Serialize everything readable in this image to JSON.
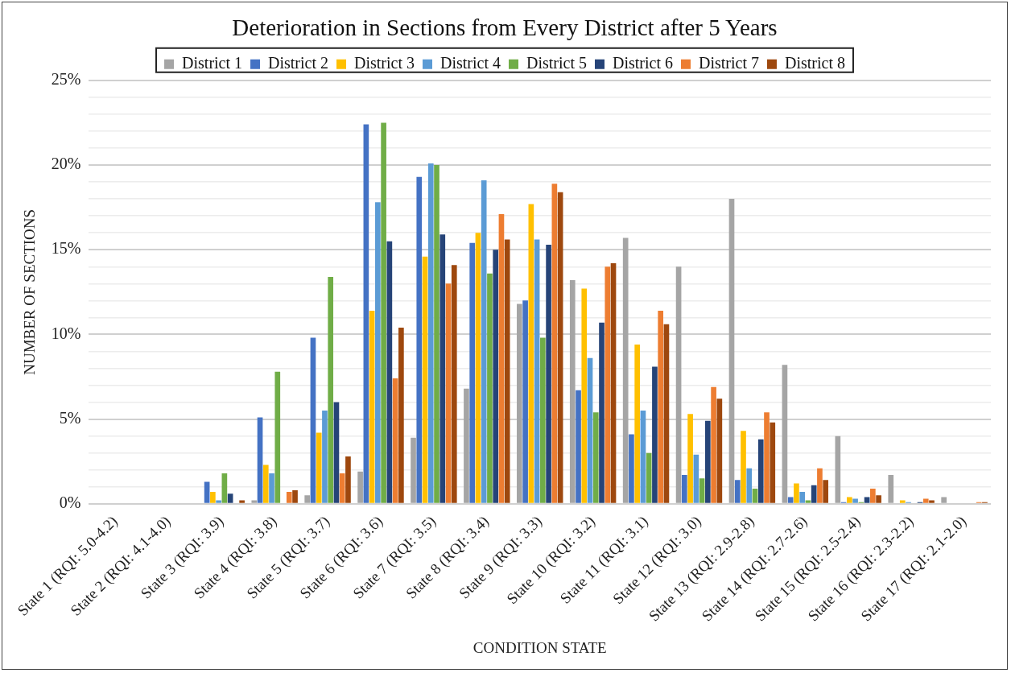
{
  "chart_data": {
    "type": "bar",
    "title": "Deterioration in Sections from Every District after 5 Years",
    "xlabel": "CONDITION STATE",
    "ylabel": "NUMBER OF SECTIONS",
    "categories": [
      "State 1 (RQI: 5.0-4.2)",
      "State 2 (RQI: 4.1-4.0)",
      "State 3 (RQI: 3.9)",
      "State 4 (RQI: 3.8)",
      "State 5 (RQI: 3.7)",
      "State 6 (RQI: 3.6)",
      "State 7 (RQI: 3.5)",
      "State 8 (RQI: 3.4)",
      "State 9 (RQI: 3.3)",
      "State 10 (RQI: 3.2)",
      "State 11 (RQI: 3.1)",
      "State 12 (RQI: 3.0)",
      "State 13 (RQI: 2.9-2.8)",
      "State 14 (RQI: 2.7-2.6)",
      "State 15 (RQI: 2.5-2.4)",
      "State 16 (RQI: 2.3-2.2)",
      "State 17 (RQI: 2.1-2.0)"
    ],
    "series": [
      {
        "name": "District 1",
        "color": "#a5a5a5",
        "values": [
          0,
          0,
          0,
          0.2,
          0.5,
          1.9,
          3.9,
          6.8,
          11.8,
          13.2,
          15.7,
          14.0,
          18.0,
          8.2,
          4.0,
          1.7,
          0.4
        ]
      },
      {
        "name": "District 2",
        "color": "#4472c4",
        "values": [
          0,
          0,
          1.3,
          5.1,
          9.8,
          22.4,
          19.3,
          15.4,
          12.0,
          6.7,
          4.1,
          1.7,
          1.4,
          0.4,
          0.1,
          0,
          0
        ]
      },
      {
        "name": "District 3",
        "color": "#ffc000",
        "values": [
          0,
          0,
          0.7,
          2.3,
          4.2,
          11.4,
          14.6,
          16.0,
          17.7,
          12.7,
          9.4,
          5.3,
          4.3,
          1.2,
          0.4,
          0.2,
          0
        ]
      },
      {
        "name": "District 4",
        "color": "#5b9bd5",
        "values": [
          0,
          0,
          0.2,
          1.8,
          5.5,
          17.8,
          20.1,
          19.1,
          15.6,
          8.6,
          5.5,
          2.9,
          2.1,
          0.7,
          0.3,
          0.1,
          0
        ]
      },
      {
        "name": "District 5",
        "color": "#70ad47",
        "values": [
          0,
          0,
          1.8,
          7.8,
          13.4,
          22.5,
          20.0,
          13.6,
          9.8,
          5.4,
          3.0,
          1.5,
          0.9,
          0.2,
          0.1,
          0,
          0
        ]
      },
      {
        "name": "District 6",
        "color": "#264478",
        "values": [
          0,
          0,
          0.6,
          0,
          6.0,
          15.5,
          15.9,
          15.0,
          15.3,
          10.7,
          8.1,
          4.9,
          3.8,
          1.1,
          0.4,
          0.1,
          0
        ]
      },
      {
        "name": "District 7",
        "color": "#ed7d31",
        "values": [
          0,
          0,
          0,
          0.7,
          1.8,
          7.4,
          13.0,
          17.1,
          18.9,
          14.0,
          11.4,
          6.9,
          5.4,
          2.1,
          0.9,
          0.3,
          0.1
        ]
      },
      {
        "name": "District 8",
        "color": "#9e480e",
        "values": [
          0,
          0,
          0.2,
          0.8,
          2.8,
          10.4,
          14.1,
          15.6,
          18.4,
          14.2,
          10.6,
          6.2,
          4.8,
          1.4,
          0.5,
          0.2,
          0.1
        ]
      }
    ],
    "ylim": [
      0,
      25
    ],
    "yticks": [
      {
        "value": 0,
        "label": "0%"
      },
      {
        "value": 1,
        "label": null
      },
      {
        "value": 2,
        "label": null
      },
      {
        "value": 3,
        "label": null
      },
      {
        "value": 4,
        "label": null
      },
      {
        "value": 5,
        "label": "5%"
      },
      {
        "value": 6,
        "label": null
      },
      {
        "value": 7,
        "label": null
      },
      {
        "value": 8,
        "label": null
      },
      {
        "value": 9,
        "label": null
      },
      {
        "value": 10,
        "label": "10%"
      },
      {
        "value": 11,
        "label": null
      },
      {
        "value": 12,
        "label": null
      },
      {
        "value": 13,
        "label": null
      },
      {
        "value": 14,
        "label": null
      },
      {
        "value": 15,
        "label": "15%"
      },
      {
        "value": 16,
        "label": null
      },
      {
        "value": 17,
        "label": null
      },
      {
        "value": 18,
        "label": null
      },
      {
        "value": 19,
        "label": null
      },
      {
        "value": 20,
        "label": "20%"
      },
      {
        "value": 21,
        "label": null
      },
      {
        "value": 22,
        "label": null
      },
      {
        "value": 23,
        "label": null
      },
      {
        "value": 24,
        "label": null
      },
      {
        "value": 25,
        "label": "25%"
      }
    ],
    "grid": "y",
    "legend": "top"
  }
}
